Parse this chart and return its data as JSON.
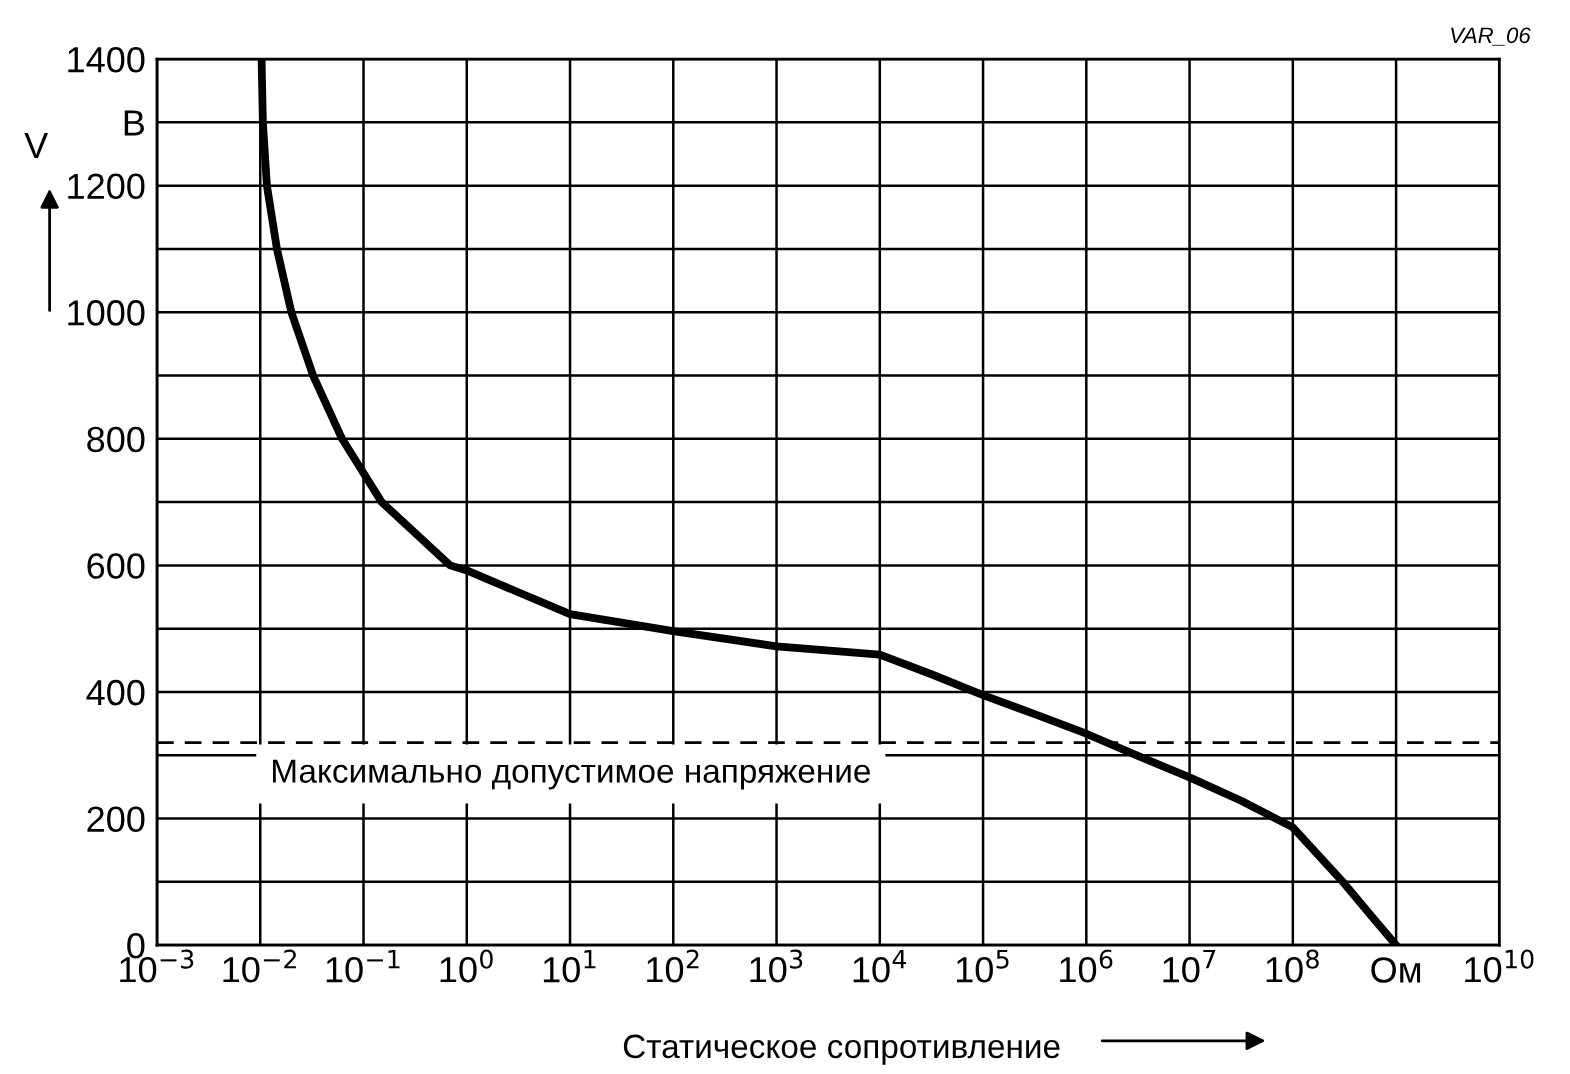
{
  "chart_data": {
    "type": "line",
    "xlabel": "Статическое сопротивление",
    "ylabel": "V",
    "log": "x",
    "x": [
      0.0103,
      0.0106,
      0.0116,
      0.0145,
      0.02,
      0.0325,
      0.062,
      0.15,
      0.69,
      1,
      10,
      100,
      1000,
      10000,
      31600,
      100000,
      316000,
      1000000,
      3160000,
      10000000,
      31600000,
      100000000,
      316000000,
      590000000,
      1000000000
    ],
    "series": [
      {
        "color": "#000000",
        "values": [
          1400,
          1300,
          1200,
          1100,
          1000,
          900,
          800,
          700,
          600,
          592,
          523,
          496,
          472,
          459,
          428,
          395,
          365,
          334,
          299,
          265,
          228,
          186,
          97,
          44,
          0
        ]
      }
    ],
    "xlim": [
      0.001,
      10000000000
    ],
    "ylim": [
      0,
      1400
    ],
    "xticks": [
      {
        "value": 0.001,
        "label": "10$^{−3}$"
      },
      {
        "value": 0.01,
        "label": "10$^{−2}$"
      },
      {
        "value": 0.1,
        "label": "10$^{−1}$"
      },
      {
        "value": 1,
        "label": "10$^{0}$"
      },
      {
        "value": 10,
        "label": "10$^{1}$"
      },
      {
        "value": 100,
        "label": "10$^{2}$"
      },
      {
        "value": 1000,
        "label": "10$^{3}$"
      },
      {
        "value": 10000,
        "label": "10$^{4}$"
      },
      {
        "value": 100000,
        "label": "10$^{5}$"
      },
      {
        "value": 1000000,
        "label": "10$^{6}$"
      },
      {
        "value": 10000000,
        "label": "10$^{7}$"
      },
      {
        "value": 100000000,
        "label": "10$^{8}$"
      },
      {
        "value": 1000000000,
        "label": "Ом"
      },
      {
        "value": 10000000000,
        "label": "10$^{10}$"
      }
    ],
    "yticks": [
      0,
      {
        "value": 100,
        "label": null
      },
      200,
      {
        "value": 300,
        "label": null
      },
      400,
      {
        "value": 500,
        "label": null
      },
      600,
      {
        "value": 700,
        "label": null
      },
      800,
      {
        "value": 900,
        "label": null
      },
      1000,
      {
        "value": 1100,
        "label": null
      },
      1200,
      {
        "value": 1300,
        "label": "В"
      },
      1400
    ],
    "grid": true,
    "line_style": "solid",
    "marker": "none",
    "ref_lines": [
      {
        "axis": "y",
        "value": 320,
        "label": "Максимально допустимое напряжение",
        "color": "#000000",
        "line_style": "dashed"
      }
    ],
    "annotations": [
      "VAR_06"
    ]
  }
}
